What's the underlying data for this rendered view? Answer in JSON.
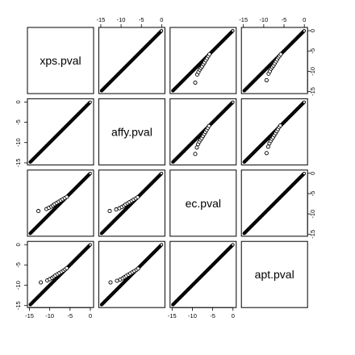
{
  "chart_data": {
    "type": "scatter",
    "subtype": "pairs-matrix",
    "variables": [
      "xps.pval",
      "affy.pval",
      "ec.pval",
      "apt.pval"
    ],
    "axis_range": [
      -15.5,
      0.8
    ],
    "ticks": [
      -15,
      -10,
      -5,
      0
    ],
    "tick_labels": [
      "-15",
      "-10",
      "-5",
      "0"
    ],
    "axes": {
      "top": [
        1,
        3
      ],
      "bottom": [
        0,
        2
      ],
      "left": [
        1,
        3
      ],
      "right": [
        0,
        2
      ]
    },
    "trend": {
      "x_min": -14.8,
      "x_max": 0,
      "description": "points lie along the identity line"
    },
    "outliers": {
      "xps-affy": [],
      "xps-ec": [
        [
          -12.8,
          -9.3
        ],
        [
          -10.8,
          -8.8
        ],
        [
          -10.2,
          -8.5
        ],
        [
          -9.6,
          -8.2
        ],
        [
          -9.2,
          -7.9
        ],
        [
          -8.8,
          -7.6
        ],
        [
          -8.3,
          -7.3
        ],
        [
          -7.8,
          -7.0
        ],
        [
          -7.3,
          -6.7
        ],
        [
          -6.8,
          -6.4
        ],
        [
          -6.3,
          -6.1
        ],
        [
          -5.8,
          -5.8
        ]
      ],
      "xps-apt": [
        [
          -12.2,
          -9.3
        ],
        [
          -10.6,
          -8.8
        ],
        [
          -10.0,
          -8.5
        ],
        [
          -9.4,
          -8.2
        ],
        [
          -9.0,
          -7.9
        ],
        [
          -8.6,
          -7.6
        ],
        [
          -8.1,
          -7.3
        ],
        [
          -7.6,
          -7.0
        ],
        [
          -7.1,
          -6.7
        ],
        [
          -6.6,
          -6.4
        ],
        [
          -6.2,
          -6.1
        ],
        [
          -5.8,
          -5.8
        ]
      ],
      "affy-ec": [
        [
          -12.8,
          -9.3
        ],
        [
          -11.2,
          -8.9
        ],
        [
          -10.4,
          -8.6
        ],
        [
          -9.8,
          -8.3
        ],
        [
          -9.3,
          -8.0
        ],
        [
          -8.9,
          -7.7
        ],
        [
          -8.4,
          -7.4
        ],
        [
          -7.9,
          -7.1
        ],
        [
          -7.4,
          -6.8
        ],
        [
          -6.9,
          -6.5
        ],
        [
          -6.4,
          -6.2
        ],
        [
          -5.9,
          -5.9
        ]
      ],
      "affy-apt": [
        [
          -12.6,
          -9.3
        ],
        [
          -11.0,
          -8.9
        ],
        [
          -10.2,
          -8.6
        ],
        [
          -9.6,
          -8.3
        ],
        [
          -9.1,
          -8.0
        ],
        [
          -8.7,
          -7.7
        ],
        [
          -8.2,
          -7.4
        ],
        [
          -7.7,
          -7.1
        ],
        [
          -7.2,
          -6.8
        ],
        [
          -6.7,
          -6.5
        ],
        [
          -6.2,
          -6.2
        ],
        [
          -5.8,
          -5.9
        ]
      ],
      "ec-apt": []
    }
  }
}
